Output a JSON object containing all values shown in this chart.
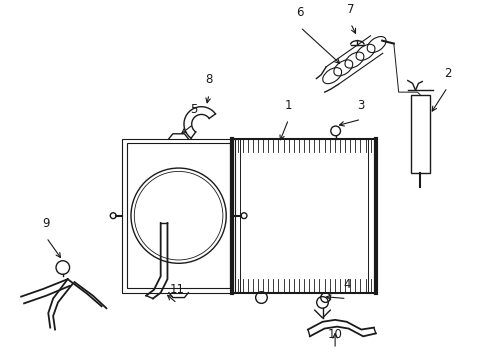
{
  "bg_color": "#ffffff",
  "line_color": "#1a1a1a",
  "lw": 1.0,
  "figsize": [
    4.89,
    3.6
  ],
  "dpi": 100
}
